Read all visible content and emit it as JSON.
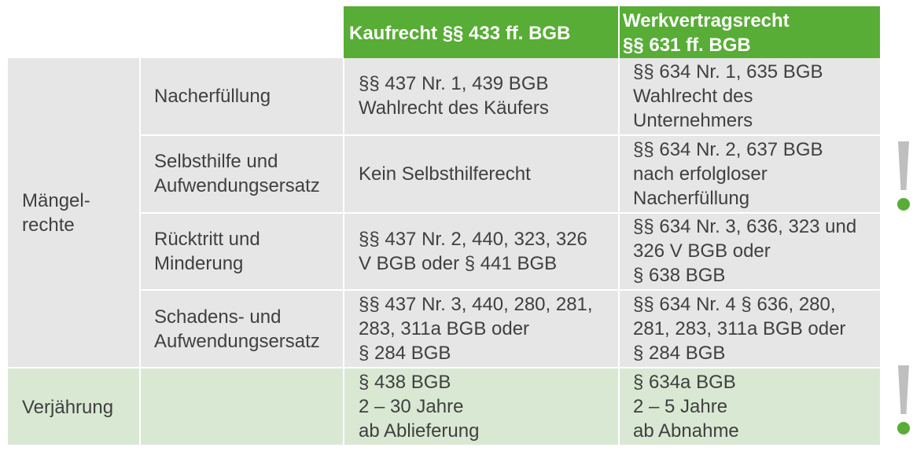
{
  "header": {
    "col_kauf": "Kaufrecht §§ 433 ff. BGB",
    "col_werk": "Werkvertragsrecht\n§§ 631 ff. BGB"
  },
  "sections": [
    {
      "label": "Mängel-\nrechte"
    },
    {
      "label": "Verjährung"
    }
  ],
  "rows": [
    {
      "right": "Nacherfüllung",
      "kauf": "§§ 437 Nr. 1, 439 BGB\nWahlrecht des Käufers",
      "werk": "§§ 634 Nr. 1, 635 BGB\nWahlrecht des\nUnternehmers"
    },
    {
      "right": "Selbsthilfe und\nAufwendungsersatz",
      "kauf": "Kein Selbsthilferecht",
      "werk": "§§ 634 Nr. 2, 637 BGB\nnach erfolgloser\nNacherfüllung"
    },
    {
      "right": "Rücktritt und\nMinderung",
      "kauf": "§§ 437 Nr. 2, 440, 323, 326\nV BGB oder § 441 BGB",
      "werk": "§§ 634 Nr. 3, 636, 323 und\n326 V BGB oder\n§ 638 BGB"
    },
    {
      "right": "Schadens- und\nAufwendungsersatz",
      "kauf": "§§ 437 Nr. 3, 440, 280, 281,\n283, 311a BGB oder\n§ 284 BGB",
      "werk": "§§ 634 Nr. 4 § 636, 280,\n281, 283, 311a BGB oder\n§ 284 BGB"
    },
    {
      "right": "",
      "kauf": "§ 438 BGB\n2 – 30 Jahre\nab Ablieferung",
      "werk": "§ 634a BGB\n2 – 5 Jahre\nab Abnahme"
    }
  ],
  "markers": [
    {
      "icon": "exclamation-icon",
      "accent": "#57ad35"
    },
    {
      "icon": "exclamation-icon",
      "accent": "#57ad35"
    }
  ],
  "colors": {
    "header_green": "#57ad35",
    "row_grey": "#e6e6e6",
    "row_green": "#d9e8d3",
    "text": "#404040"
  }
}
